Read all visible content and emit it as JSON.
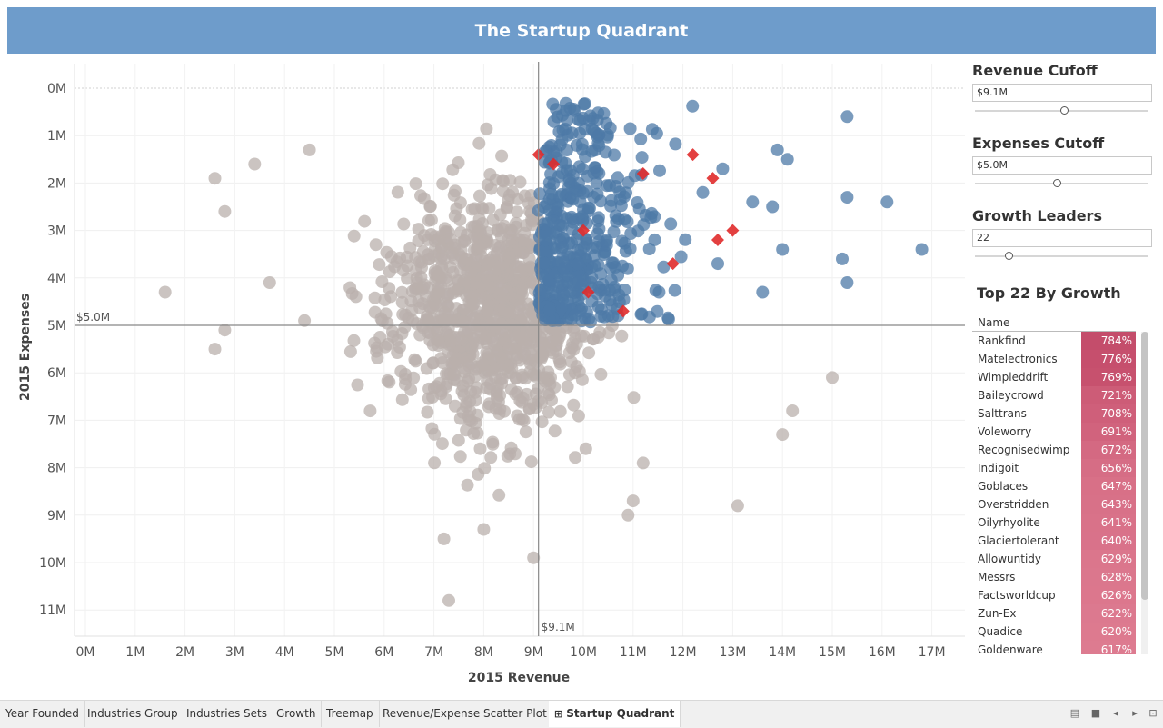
{
  "header": {
    "title": "The Startup Quadrant"
  },
  "chart_data": {
    "type": "scatter",
    "xlabel": "2015 Revenue",
    "ylabel": "2015 Expenses",
    "xlim": [
      0,
      17.8
    ],
    "ylim": [
      0,
      11.8
    ],
    "y_reversed": true,
    "x_ticks": [
      "0M",
      "1M",
      "2M",
      "3M",
      "4M",
      "5M",
      "6M",
      "7M",
      "8M",
      "9M",
      "10M",
      "11M",
      "12M",
      "13M",
      "14M",
      "15M",
      "16M",
      "17M"
    ],
    "y_ticks": [
      "0M",
      "1M",
      "2M",
      "3M",
      "4M",
      "5M",
      "6M",
      "7M",
      "8M",
      "9M",
      "10M",
      "11M"
    ],
    "reference_lines": {
      "revenue_cutoff": 9.1,
      "revenue_label": "$9.1M",
      "expenses_cutoff": 5.0,
      "expenses_label": "$5.0M"
    },
    "colors": {
      "quadrant": "#4e79a7",
      "other": "#bab0ac",
      "leaders": "#e02b2b"
    },
    "growth_leaders": {
      "x": [
        9.1,
        9.4,
        10.0,
        10.1,
        10.8,
        11.2,
        11.8,
        12.2,
        12.6,
        12.7,
        13.0
      ],
      "y": [
        1.4,
        1.6,
        3.0,
        4.3,
        4.7,
        1.8,
        3.7,
        1.4,
        1.9,
        3.2,
        3.0
      ]
    },
    "highlighted_points": {
      "x": [
        15.3,
        15.3,
        16.1,
        16.8,
        13.9,
        14.0,
        15.2,
        15.3,
        14.1,
        12.8,
        13.4,
        12.4,
        13.8,
        13.6,
        12.7
      ],
      "y": [
        0.6,
        2.3,
        2.4,
        3.4,
        1.3,
        3.4,
        3.6,
        4.1,
        1.5,
        1.7,
        2.4,
        2.2,
        2.5,
        4.3,
        3.7
      ]
    },
    "outlier_points": {
      "x": [
        1.6,
        2.6,
        2.6,
        2.8,
        2.8,
        3.4,
        3.7,
        4.4,
        4.5,
        7.3,
        9.0,
        13.1,
        14.2,
        14.0,
        15.0,
        11.0,
        10.9,
        11.2,
        7.2,
        8.0
      ],
      "y": [
        4.3,
        1.9,
        5.5,
        5.1,
        2.6,
        1.6,
        4.1,
        4.9,
        1.3,
        10.8,
        9.9,
        8.8,
        6.8,
        7.3,
        6.1,
        8.7,
        9.0,
        7.9,
        9.5,
        9.3
      ]
    }
  },
  "controls": {
    "revenue": {
      "title": "Revenue Cufoff",
      "value": "$9.1M",
      "fraction": 0.51
    },
    "expenses": {
      "title": "Expenses Cutoff",
      "value": "$5.0M",
      "fraction": 0.47
    },
    "growth": {
      "title": "Growth Leaders",
      "value": "22",
      "fraction": 0.18
    }
  },
  "table": {
    "title": "Top 22 By Growth",
    "column_header": "Name",
    "rows": [
      {
        "name": "Rankfind",
        "pct": "784%"
      },
      {
        "name": "Matelectronics",
        "pct": "776%"
      },
      {
        "name": "Wimpleddrift",
        "pct": "769%"
      },
      {
        "name": "Baileycrowd",
        "pct": "721%"
      },
      {
        "name": "Salttrans",
        "pct": "708%"
      },
      {
        "name": "Voleworry",
        "pct": "691%"
      },
      {
        "name": "Recognisedwimp",
        "pct": "672%"
      },
      {
        "name": "Indigoit",
        "pct": "656%"
      },
      {
        "name": "Goblaces",
        "pct": "647%"
      },
      {
        "name": "Overstridden",
        "pct": "643%"
      },
      {
        "name": "Oilyrhyolite",
        "pct": "641%"
      },
      {
        "name": "Glaciertolerant",
        "pct": "640%"
      },
      {
        "name": "Allowuntidy",
        "pct": "629%"
      },
      {
        "name": "Messrs",
        "pct": "628%"
      },
      {
        "name": "Factsworldcup",
        "pct": "626%"
      },
      {
        "name": "Zun-Ex",
        "pct": "622%"
      },
      {
        "name": "Quadice",
        "pct": "620%"
      },
      {
        "name": "Goldenware",
        "pct": "617%"
      }
    ],
    "pct_colors": [
      "#c44d6b",
      "#c64f6d",
      "#c7516e",
      "#cd5c77",
      "#cf5f7a",
      "#d1637d",
      "#d46982",
      "#d66d85",
      "#d87087",
      "#d87188",
      "#d97289",
      "#d9728a",
      "#db768c",
      "#db778d",
      "#dc778d",
      "#dc798f",
      "#dd7a8f",
      "#dd7b90"
    ]
  },
  "tabs": [
    {
      "label": "Year Founded"
    },
    {
      "label": "Industries Group"
    },
    {
      "label": "Industries Sets"
    },
    {
      "label": "Growth"
    },
    {
      "label": "Treemap"
    },
    {
      "label": "Revenue/Expense Scatter Plot"
    },
    {
      "label": "Startup Quadrant"
    }
  ],
  "icons": {
    "tab_icon": "dashboard-icon",
    "toolbar": [
      "grid-view-icon",
      "sheet-view-icon",
      "prev-icon",
      "next-icon",
      "present-icon"
    ]
  }
}
